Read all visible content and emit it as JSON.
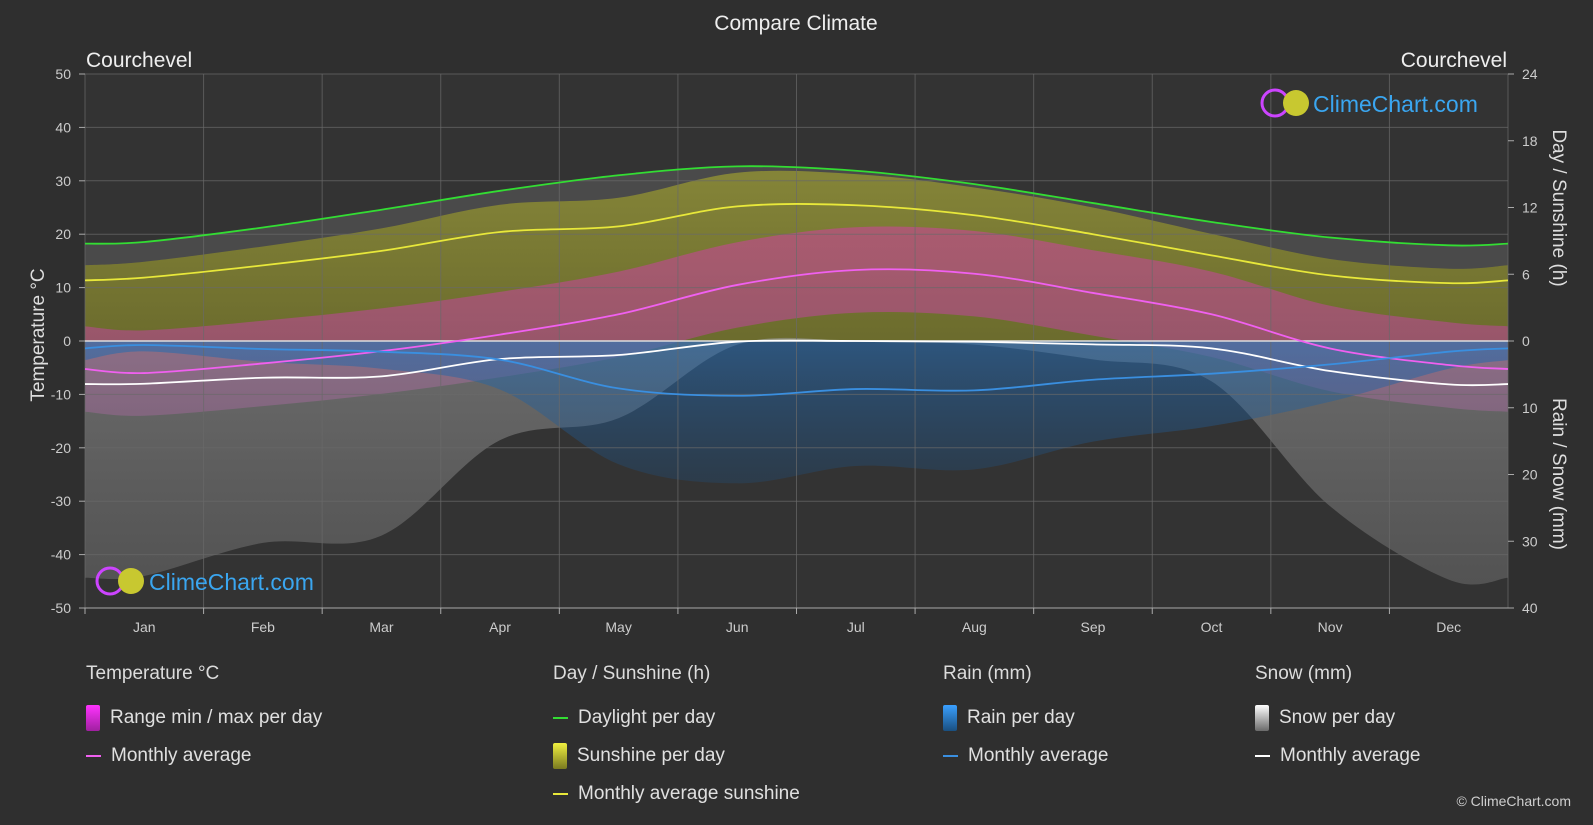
{
  "chart_data": {
    "type": "area",
    "title": "Compare Climate",
    "location_left": "Courchevel",
    "location_right": "Courchevel",
    "watermark": "ClimeChart.com",
    "categories": [
      "Jan",
      "Feb",
      "Mar",
      "Apr",
      "May",
      "Jun",
      "Jul",
      "Aug",
      "Sep",
      "Oct",
      "Nov",
      "Dec"
    ],
    "y_left": {
      "label": "Temperature °C",
      "range": [
        -50,
        50
      ],
      "ticks": [
        "50",
        "40",
        "30",
        "20",
        "10",
        "0",
        "-10",
        "-20",
        "-30",
        "-40",
        "-50"
      ]
    },
    "y_right_top": {
      "label": "Day / Sunshine (h)",
      "range": [
        0,
        24
      ],
      "ticks": [
        "24",
        "18",
        "12",
        "6",
        "0"
      ]
    },
    "y_right_bottom": {
      "label": "Rain / Snow (mm)",
      "range": [
        0,
        40
      ],
      "ticks": [
        "10",
        "20",
        "30",
        "40"
      ]
    },
    "grid": true,
    "series": [
      {
        "name": "Daylight per day",
        "unit": "h",
        "color": "#33dd33",
        "values": [
          8.9,
          10.2,
          11.8,
          13.5,
          14.9,
          15.7,
          15.3,
          14.1,
          12.4,
          10.7,
          9.3,
          8.6
        ]
      },
      {
        "name": "Monthly average sunshine",
        "unit": "h",
        "color": "#e8e83a",
        "values": [
          5.7,
          6.8,
          8.1,
          9.8,
          10.3,
          12.1,
          12.2,
          11.3,
          9.6,
          7.7,
          5.9,
          5.2
        ]
      },
      {
        "name": "Temperature monthly average",
        "unit": "°C",
        "color": "#f060f0",
        "values": [
          -6.0,
          -4.2,
          -1.9,
          1.2,
          5.0,
          10.5,
          13.3,
          12.6,
          9.0,
          5.0,
          -1.4,
          -4.5
        ]
      },
      {
        "name": "Snow monthly average",
        "unit": "mm",
        "color": "#ffffff",
        "values": [
          6.4,
          5.5,
          5.3,
          2.7,
          2.1,
          0.1,
          0.0,
          0.1,
          0.5,
          1.1,
          4.5,
          6.5
        ]
      },
      {
        "name": "Rain monthly average",
        "unit": "mm",
        "color": "#3a8fe0",
        "values": [
          0.6,
          1.2,
          1.6,
          2.8,
          7.1,
          8.2,
          7.2,
          7.4,
          5.8,
          4.9,
          3.5,
          1.6
        ]
      }
    ]
  },
  "legend": {
    "temp": {
      "title": "Temperature °C",
      "range": "Range min / max per day",
      "avg": "Monthly average"
    },
    "sun": {
      "title": "Day / Sunshine (h)",
      "daylight": "Daylight per day",
      "sunshine": "Sunshine per day",
      "avg": "Monthly average sunshine"
    },
    "rain": {
      "title": "Rain (mm)",
      "per_day": "Rain per day",
      "avg": "Monthly average"
    },
    "snow": {
      "title": "Snow (mm)",
      "per_day": "Snow per day",
      "avg": "Monthly average"
    }
  },
  "copyright": "© ClimeChart.com"
}
